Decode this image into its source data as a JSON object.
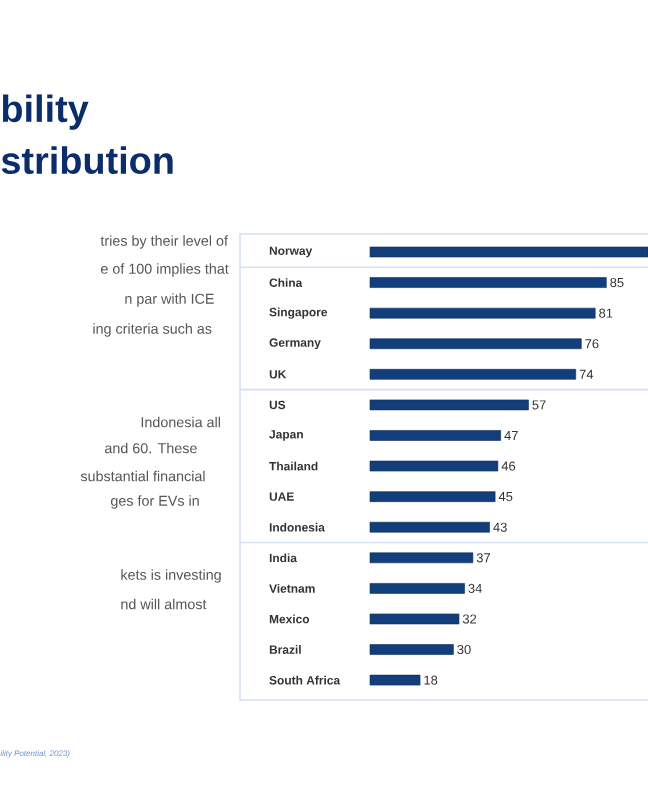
{
  "chart_data": {
    "type": "bar",
    "orientation": "horizontal",
    "title": "bility stribution",
    "categories": [
      "Norway",
      "China",
      "Singapore",
      "Germany",
      "UK",
      "US",
      "Japan",
      "Thailand",
      "UAE",
      "Indonesia",
      "India",
      "Vietnam",
      "Mexico",
      "Brazil",
      "South Africa"
    ],
    "values": [
      100,
      85,
      81,
      76,
      74,
      57,
      47,
      46,
      45,
      43,
      37,
      34,
      32,
      30,
      18
    ],
    "value_labels": [
      null,
      "85",
      "81",
      "76",
      "74",
      "57",
      "47",
      "46",
      "45",
      "43",
      "37",
      "34",
      "32",
      "30",
      "18"
    ],
    "color": "#123f7c",
    "xlim": [
      0,
      100
    ],
    "tick_labels": "y",
    "annotations": [
      "tries by their level of",
      "e of 100 implies that",
      "n par with ICE",
      "ing criteria such as",
      "Indonesia all",
      "and 60. These",
      "substantial financial",
      "ges for EVs in",
      "kets is investing",
      "nd will almost",
      "ility Potential, 2023)"
    ]
  }
}
